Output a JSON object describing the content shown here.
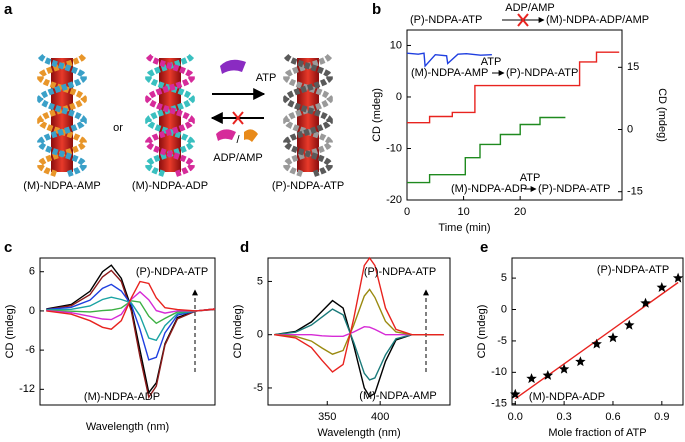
{
  "figure_a": {
    "label": "a",
    "texts": [
      "(M)-NDPA-AMP",
      "or",
      "(M)-NDPA-ADP",
      "ATP",
      "ADP/AMP",
      "(P)-NDPA-ATP"
    ]
  },
  "chart_data": [
    {
      "type": "line",
      "panel": "b",
      "xlabel": "Time (min)",
      "ylabel": "CD (mdeg)",
      "y2label": "CD (mdeg)",
      "ylabel_color": "#e8231f",
      "y2label_color": "#1f8a1f",
      "xlim": [
        0,
        38
      ],
      "xticks": [
        0,
        10,
        20
      ],
      "ylim": [
        -20,
        13
      ],
      "yticks": [
        10,
        0,
        -10,
        -20
      ],
      "y2lim": [
        -17,
        24
      ],
      "y2ticks": [
        15,
        0,
        -15
      ],
      "series": [
        {
          "color": "#1f3fe0",
          "x": [
            0,
            2,
            3,
            3.2,
            5,
            7,
            7.2,
            9,
            10.5,
            13,
            15
          ],
          "values": [
            8.5,
            8.3,
            8.5,
            6,
            8.2,
            8,
            6.5,
            8.3,
            8.4,
            8.1,
            8.2
          ]
        },
        {
          "color": "#e8231f",
          "x": [
            0,
            4,
            4,
            8,
            8,
            12,
            12,
            30.5,
            30.5,
            33.5,
            33.5,
            37.5
          ],
          "values": [
            -5,
            -5,
            -3.8,
            -3.8,
            -3,
            -3,
            2.2,
            2.2,
            6.8,
            6.8,
            8.7,
            8.7
          ]
        },
        {
          "color": "#1f8a1f",
          "axis": "y2",
          "x": [
            0,
            4,
            4,
            10.3,
            10.3,
            12.9,
            12.9,
            16.5,
            16.5,
            20,
            20,
            23.5,
            23.5,
            28
          ],
          "values": [
            -12.8,
            -12.8,
            -10.9,
            -10.9,
            -6.8,
            -6.8,
            -3.6,
            -3.6,
            -1.2,
            -1.2,
            1.2,
            1.2,
            2.9,
            2.9
          ]
        }
      ],
      "annotations": [
        {
          "text": "(P)-NDPA-ATP",
          "color": "#1f3fe0"
        },
        {
          "text": "ADP/AMP",
          "color": "#e8231f"
        },
        {
          "text": "(M)-NDPA-ADP/AMP",
          "color": "#1f3fe0"
        },
        {
          "text": "ATP",
          "color": "#1f3fe0"
        },
        {
          "text": "(M)-NDPA-AMP",
          "color": "#e8231f"
        },
        {
          "text": "(P)-NDPA-ATP",
          "color": "#e8231f"
        },
        {
          "text": "ATP",
          "color": "#1f3fe0"
        },
        {
          "text": "(M)-NDPA-ADP",
          "color": "#1f8a1f"
        },
        {
          "text": "(P)-NDPA-ATP",
          "color": "#1f8a1f"
        }
      ]
    },
    {
      "type": "line",
      "panel": "c",
      "xlabel": "Wavelength (nm)",
      "ylabel": "CD (mdeg)",
      "xlim": [
        305,
        445
      ],
      "ylim": [
        -14.4,
        8.1
      ],
      "yticks": [
        6,
        0,
        -6,
        -12
      ],
      "x": [
        310,
        330,
        345,
        355,
        362,
        370,
        378,
        385,
        392,
        398,
        405,
        415,
        430,
        445
      ],
      "series": [
        {
          "color": "#000000",
          "values": [
            0.3,
            1,
            3,
            6,
            7,
            5,
            0.5,
            -6,
            -12.5,
            -11,
            -5,
            -1,
            0,
            0.3
          ]
        },
        {
          "color": "#8b1a1a",
          "values": [
            0.2,
            0.8,
            2.5,
            5.2,
            6.2,
            4.5,
            0,
            -7,
            -13.2,
            -11.5,
            -5.2,
            -1.2,
            0,
            0.2
          ]
        },
        {
          "color": "#1f3fe0",
          "values": [
            0.21,
            0.55,
            1.65,
            3.45,
            4.06,
            3.05,
            0.95,
            -2.85,
            -7.49,
            -7.1,
            -3.35,
            -0.64,
            0,
            0.3
          ]
        },
        {
          "color": "#1aa3a3",
          "values": [
            0.15,
            0.25,
            0.75,
            1.75,
            2.1,
            1.75,
            1.25,
            -0.75,
            -4.15,
            -4.5,
            -2.25,
            -0.4,
            0,
            0.3
          ]
        },
        {
          "color": "#3cb043",
          "values": [
            0.09,
            -0.05,
            -0.15,
            0.05,
            0.14,
            0.45,
            1.55,
            1.35,
            -0.81,
            -1.9,
            -1.15,
            -0.16,
            0,
            0.3
          ]
        },
        {
          "color": "#d62bd6",
          "values": [
            0.05,
            -0.28,
            -0.83,
            -1.23,
            -1.33,
            -0.53,
            1.78,
            2.93,
            1.7,
            0.05,
            -0.33,
            0.02,
            0,
            0.3
          ]
        },
        {
          "color": "#e8231f",
          "values": [
            0,
            -0.5,
            -1.5,
            -2.5,
            -2.8,
            -1.5,
            2,
            4.5,
            4.2,
            2,
            0.5,
            0.2,
            0,
            0.3
          ]
        }
      ],
      "annotations": [
        {
          "text": "(P)-NDPA-ATP",
          "color": "#1f8a1f"
        },
        {
          "text": "(M)-NDPA-ADP",
          "color": "#1f8a1f"
        }
      ]
    },
    {
      "type": "line",
      "panel": "d",
      "xlabel": "Wavelength (nm)",
      "ylabel": "CD (mdeg)",
      "xlim": [
        294,
        466
      ],
      "xticks": [
        350,
        400
      ],
      "ylim": [
        -6.6,
        7.2
      ],
      "yticks": [
        5,
        0,
        -5
      ],
      "x": [
        300,
        320,
        335,
        345,
        355,
        365,
        375,
        385,
        390,
        395,
        405,
        415,
        430,
        460
      ],
      "series": [
        {
          "color": "#000000",
          "values": [
            0,
            0.3,
            1.2,
            2.2,
            3.2,
            2.5,
            -1,
            -5,
            -5.8,
            -5.5,
            -2.5,
            -0.5,
            0,
            0
          ]
        },
        {
          "color": "#1a7a7a",
          "values": [
            0,
            0.23,
            0.91,
            1.65,
            2.4,
            1.86,
            -0.7,
            -3.62,
            -4.24,
            -4.06,
            -1.9,
            -0.38,
            0,
            0
          ]
        },
        {
          "color": "#d62bd6",
          "values": [
            0,
            0,
            0,
            -0.1,
            -0.15,
            -0.15,
            0.25,
            0.75,
            0.7,
            0.5,
            0,
            0,
            0,
            0
          ]
        },
        {
          "color": "#9a8a10",
          "values": [
            0,
            -0.15,
            -0.6,
            -1.25,
            -1.83,
            -1.48,
            0.88,
            3.63,
            4.25,
            3.5,
            1.25,
            0.25,
            0,
            0
          ]
        },
        {
          "color": "#e8231f",
          "values": [
            0,
            -0.3,
            -1.2,
            -2.4,
            -3.5,
            -2.8,
            1.5,
            6.5,
            7.2,
            6.5,
            2.5,
            0.5,
            0,
            0
          ]
        }
      ],
      "annotations": [
        {
          "text": "(P)-NDPA-ATP",
          "color": "#e8231f"
        },
        {
          "text": "(M)-NDPA-AMP",
          "color": "#e8231f"
        }
      ]
    },
    {
      "type": "scatter",
      "panel": "e",
      "xlabel": "Mole fraction of ATP",
      "ylabel": "CD (mdeg)",
      "xlim": [
        -0.02,
        1.03
      ],
      "xticks": [
        {
          "value": 0,
          "label": "0.0"
        },
        {
          "value": 0.3,
          "label": "0.3"
        },
        {
          "value": 0.6,
          "label": "0.6"
        },
        {
          "value": 0.9,
          "label": "0.9"
        }
      ],
      "ylim": [
        -15.2,
        8.2
      ],
      "yticks": [
        5,
        0,
        -5,
        -10,
        -15
      ],
      "x": [
        0,
        0.1,
        0.2,
        0.3,
        0.4,
        0.5,
        0.6,
        0.7,
        0.8,
        0.9,
        1.0
      ],
      "values": [
        -13.5,
        -11,
        -10.5,
        -9.5,
        -8.3,
        -5.5,
        -4.5,
        -2.5,
        1,
        3.5,
        5
      ],
      "color": "#000000",
      "fit": {
        "color": "#e8231f",
        "x": [
          0,
          1
        ],
        "values": [
          -14.2,
          4.3
        ]
      },
      "annotations": [
        {
          "text": "(P)-NDPA-ATP",
          "color": "#e8231f"
        },
        {
          "text": "(M)-NDPA-ADP",
          "color": "#e8231f"
        }
      ]
    }
  ]
}
